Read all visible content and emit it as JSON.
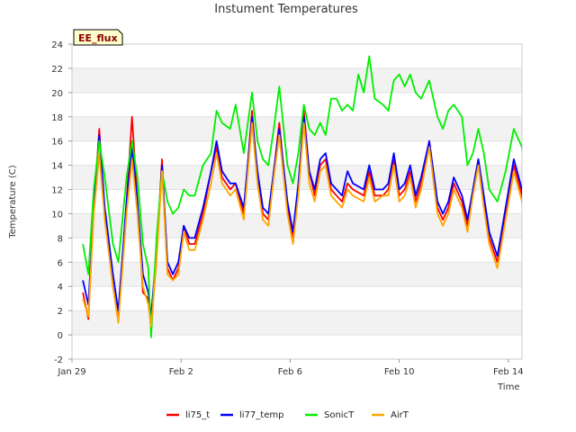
{
  "chart_data": {
    "type": "line",
    "title": "Instument Temperatures",
    "badge": "EE_flux",
    "xlabel": "Time",
    "ylabel": "Temperature (C)",
    "xlim": [
      0,
      16.5
    ],
    "ylim": [
      -2,
      24
    ],
    "yticks": [
      -2,
      0,
      2,
      4,
      6,
      8,
      10,
      12,
      14,
      16,
      18,
      20,
      22,
      24
    ],
    "xticks": [
      {
        "value": 0,
        "label": "Jan 29"
      },
      {
        "value": 4,
        "label": "Feb 2"
      },
      {
        "value": 8,
        "label": "Feb 6"
      },
      {
        "value": 12,
        "label": "Feb 10"
      },
      {
        "value": 16,
        "label": "Feb 14"
      }
    ],
    "grid": true,
    "legend_position": "bottom",
    "series": [
      {
        "name": "li75_t",
        "color": "#ff0000",
        "points": [
          [
            0.4,
            3.5
          ],
          [
            0.6,
            1.3
          ],
          [
            0.8,
            10.5
          ],
          [
            1.0,
            17.0
          ],
          [
            1.2,
            10.0
          ],
          [
            1.5,
            4.0
          ],
          [
            1.7,
            1.2
          ],
          [
            2.0,
            11.0
          ],
          [
            2.2,
            18.0
          ],
          [
            2.4,
            11.0
          ],
          [
            2.6,
            3.5
          ],
          [
            2.8,
            3.0
          ],
          [
            2.9,
            0.5
          ],
          [
            3.1,
            6.5
          ],
          [
            3.3,
            14.5
          ],
          [
            3.5,
            5.5
          ],
          [
            3.7,
            4.5
          ],
          [
            3.9,
            5.5
          ],
          [
            4.1,
            9.0
          ],
          [
            4.3,
            7.5
          ],
          [
            4.5,
            7.5
          ],
          [
            4.8,
            10.0
          ],
          [
            5.1,
            13.5
          ],
          [
            5.3,
            15.5
          ],
          [
            5.5,
            13.0
          ],
          [
            5.8,
            12.0
          ],
          [
            6.0,
            12.5
          ],
          [
            6.3,
            10.0
          ],
          [
            6.6,
            18.5
          ],
          [
            6.8,
            13.0
          ],
          [
            7.0,
            10.0
          ],
          [
            7.2,
            9.5
          ],
          [
            7.4,
            13.5
          ],
          [
            7.6,
            17.5
          ],
          [
            7.9,
            10.5
          ],
          [
            8.1,
            8.0
          ],
          [
            8.3,
            12.0
          ],
          [
            8.5,
            18.5
          ],
          [
            8.7,
            13.5
          ],
          [
            8.9,
            11.5
          ],
          [
            9.1,
            14.0
          ],
          [
            9.3,
            14.5
          ],
          [
            9.5,
            12.0
          ],
          [
            9.7,
            11.5
          ],
          [
            9.9,
            11.0
          ],
          [
            10.1,
            12.5
          ],
          [
            10.3,
            12.0
          ],
          [
            10.7,
            11.5
          ],
          [
            10.9,
            13.5
          ],
          [
            11.1,
            11.5
          ],
          [
            11.4,
            11.5
          ],
          [
            11.6,
            12.0
          ],
          [
            11.8,
            14.5
          ],
          [
            12.0,
            11.5
          ],
          [
            12.2,
            12.0
          ],
          [
            12.4,
            13.5
          ],
          [
            12.6,
            11.0
          ],
          [
            12.8,
            12.5
          ],
          [
            13.1,
            16.0
          ],
          [
            13.4,
            10.5
          ],
          [
            13.6,
            9.5
          ],
          [
            13.8,
            10.5
          ],
          [
            14.0,
            12.5
          ],
          [
            14.3,
            11.0
          ],
          [
            14.5,
            9.0
          ],
          [
            14.7,
            12.0
          ],
          [
            14.9,
            14.5
          ],
          [
            15.1,
            11.0
          ],
          [
            15.3,
            8.0
          ],
          [
            15.6,
            6.0
          ],
          [
            15.9,
            10.0
          ],
          [
            16.2,
            14.0
          ],
          [
            16.5,
            11.5
          ],
          [
            16.8,
            5.5
          ],
          [
            17.0,
            9.0
          ],
          [
            17.2,
            13.5
          ],
          [
            17.5,
            17.0
          ],
          [
            17.8,
            13.0
          ],
          [
            18.0,
            8.0
          ]
        ]
      },
      {
        "name": "li77_temp",
        "color": "#0000ff",
        "points": [
          [
            0.4,
            4.5
          ],
          [
            0.6,
            2.5
          ],
          [
            0.8,
            10.5
          ],
          [
            1.0,
            16.5
          ],
          [
            1.2,
            10.5
          ],
          [
            1.5,
            5.0
          ],
          [
            1.7,
            2.0
          ],
          [
            2.0,
            11.0
          ],
          [
            2.2,
            15.5
          ],
          [
            2.4,
            11.0
          ],
          [
            2.6,
            5.0
          ],
          [
            2.8,
            3.5
          ],
          [
            2.9,
            1.5
          ],
          [
            3.1,
            7.0
          ],
          [
            3.3,
            14.0
          ],
          [
            3.5,
            6.0
          ],
          [
            3.7,
            5.0
          ],
          [
            3.9,
            6.0
          ],
          [
            4.1,
            9.0
          ],
          [
            4.3,
            8.0
          ],
          [
            4.5,
            8.0
          ],
          [
            4.8,
            10.5
          ],
          [
            5.1,
            13.5
          ],
          [
            5.3,
            16.0
          ],
          [
            5.5,
            13.5
          ],
          [
            5.8,
            12.5
          ],
          [
            6.0,
            12.5
          ],
          [
            6.3,
            10.5
          ],
          [
            6.6,
            18.0
          ],
          [
            6.8,
            13.5
          ],
          [
            7.0,
            10.5
          ],
          [
            7.2,
            10.0
          ],
          [
            7.4,
            13.5
          ],
          [
            7.6,
            17.0
          ],
          [
            7.9,
            11.0
          ],
          [
            8.1,
            8.5
          ],
          [
            8.3,
            12.5
          ],
          [
            8.5,
            18.0
          ],
          [
            8.7,
            13.5
          ],
          [
            8.9,
            12.0
          ],
          [
            9.1,
            14.5
          ],
          [
            9.3,
            15.0
          ],
          [
            9.5,
            12.5
          ],
          [
            9.7,
            12.0
          ],
          [
            9.9,
            11.5
          ],
          [
            10.1,
            13.5
          ],
          [
            10.3,
            12.5
          ],
          [
            10.7,
            12.0
          ],
          [
            10.9,
            14.0
          ],
          [
            11.1,
            12.0
          ],
          [
            11.4,
            12.0
          ],
          [
            11.6,
            12.5
          ],
          [
            11.8,
            15.0
          ],
          [
            12.0,
            12.0
          ],
          [
            12.2,
            12.5
          ],
          [
            12.4,
            14.0
          ],
          [
            12.6,
            11.5
          ],
          [
            12.8,
            13.0
          ],
          [
            13.1,
            16.0
          ],
          [
            13.4,
            11.0
          ],
          [
            13.6,
            10.0
          ],
          [
            13.8,
            11.0
          ],
          [
            14.0,
            13.0
          ],
          [
            14.3,
            11.5
          ],
          [
            14.5,
            9.5
          ],
          [
            14.7,
            12.0
          ],
          [
            14.9,
            14.5
          ],
          [
            15.1,
            11.5
          ],
          [
            15.3,
            8.5
          ],
          [
            15.6,
            6.5
          ],
          [
            15.9,
            10.5
          ],
          [
            16.2,
            14.5
          ],
          [
            16.5,
            12.0
          ],
          [
            16.8,
            6.0
          ],
          [
            17.0,
            9.5
          ],
          [
            17.2,
            14.0
          ],
          [
            17.5,
            16.5
          ],
          [
            17.8,
            13.0
          ],
          [
            18.0,
            9.0
          ]
        ]
      },
      {
        "name": "SonicT",
        "color": "#00ee00",
        "points": [
          [
            0.4,
            7.5
          ],
          [
            0.6,
            5.0
          ],
          [
            0.8,
            12.0
          ],
          [
            1.0,
            16.0
          ],
          [
            1.2,
            13.0
          ],
          [
            1.5,
            7.5
          ],
          [
            1.7,
            6.0
          ],
          [
            2.0,
            13.0
          ],
          [
            2.2,
            16.0
          ],
          [
            2.4,
            13.0
          ],
          [
            2.6,
            7.5
          ],
          [
            2.8,
            5.5
          ],
          [
            2.9,
            -0.2
          ],
          [
            3.1,
            8.0
          ],
          [
            3.3,
            13.5
          ],
          [
            3.5,
            11.0
          ],
          [
            3.7,
            10.0
          ],
          [
            3.9,
            10.5
          ],
          [
            4.1,
            12.0
          ],
          [
            4.3,
            11.5
          ],
          [
            4.5,
            11.5
          ],
          [
            4.8,
            14.0
          ],
          [
            5.1,
            15.0
          ],
          [
            5.3,
            18.5
          ],
          [
            5.5,
            17.5
          ],
          [
            5.8,
            17.0
          ],
          [
            6.0,
            19.0
          ],
          [
            6.3,
            15.0
          ],
          [
            6.6,
            20.0
          ],
          [
            6.8,
            16.0
          ],
          [
            7.0,
            14.5
          ],
          [
            7.2,
            14.0
          ],
          [
            7.4,
            17.0
          ],
          [
            7.6,
            20.5
          ],
          [
            7.9,
            14.0
          ],
          [
            8.1,
            12.5
          ],
          [
            8.3,
            15.0
          ],
          [
            8.5,
            19.0
          ],
          [
            8.7,
            17.0
          ],
          [
            8.9,
            16.5
          ],
          [
            9.1,
            17.5
          ],
          [
            9.3,
            16.5
          ],
          [
            9.5,
            19.5
          ],
          [
            9.7,
            19.5
          ],
          [
            9.9,
            18.5
          ],
          [
            10.1,
            19.0
          ],
          [
            10.3,
            18.5
          ],
          [
            10.5,
            21.5
          ],
          [
            10.7,
            20.0
          ],
          [
            10.9,
            23.0
          ],
          [
            11.1,
            19.5
          ],
          [
            11.4,
            19.0
          ],
          [
            11.6,
            18.5
          ],
          [
            11.8,
            21.0
          ],
          [
            12.0,
            21.5
          ],
          [
            12.2,
            20.5
          ],
          [
            12.4,
            21.5
          ],
          [
            12.6,
            20.0
          ],
          [
            12.8,
            19.5
          ],
          [
            13.1,
            21.0
          ],
          [
            13.4,
            18.0
          ],
          [
            13.6,
            17.0
          ],
          [
            13.8,
            18.5
          ],
          [
            14.0,
            19.0
          ],
          [
            14.3,
            18.0
          ],
          [
            14.5,
            14.0
          ],
          [
            14.7,
            15.0
          ],
          [
            14.9,
            17.0
          ],
          [
            15.1,
            15.0
          ],
          [
            15.3,
            12.0
          ],
          [
            15.6,
            11.0
          ],
          [
            15.9,
            13.5
          ],
          [
            16.2,
            17.0
          ],
          [
            16.5,
            15.5
          ],
          [
            16.8,
            10.5
          ],
          [
            17.0,
            12.0
          ],
          [
            17.2,
            15.0
          ],
          [
            17.5,
            21.0
          ],
          [
            17.8,
            18.0
          ],
          [
            18.0,
            13.0
          ]
        ]
      },
      {
        "name": "AirT",
        "color": "#ffa500",
        "points": [
          [
            0.4,
            3.0
          ],
          [
            0.6,
            1.5
          ],
          [
            0.8,
            10.0
          ],
          [
            1.0,
            15.0
          ],
          [
            1.2,
            9.5
          ],
          [
            1.5,
            4.0
          ],
          [
            1.7,
            1.0
          ],
          [
            2.0,
            10.0
          ],
          [
            2.2,
            14.5
          ],
          [
            2.4,
            10.0
          ],
          [
            2.6,
            4.0
          ],
          [
            2.8,
            2.5
          ],
          [
            2.9,
            0.7
          ],
          [
            3.1,
            6.0
          ],
          [
            3.3,
            13.5
          ],
          [
            3.5,
            5.0
          ],
          [
            3.7,
            4.5
          ],
          [
            3.9,
            5.0
          ],
          [
            4.1,
            8.5
          ],
          [
            4.3,
            7.0
          ],
          [
            4.5,
            7.0
          ],
          [
            4.8,
            9.5
          ],
          [
            5.1,
            12.5
          ],
          [
            5.3,
            15.0
          ],
          [
            5.5,
            12.5
          ],
          [
            5.8,
            11.5
          ],
          [
            6.0,
            12.0
          ],
          [
            6.3,
            9.5
          ],
          [
            6.6,
            17.5
          ],
          [
            6.8,
            12.5
          ],
          [
            7.0,
            9.5
          ],
          [
            7.2,
            9.0
          ],
          [
            7.4,
            13.0
          ],
          [
            7.6,
            16.5
          ],
          [
            7.9,
            10.0
          ],
          [
            8.1,
            7.5
          ],
          [
            8.3,
            11.5
          ],
          [
            8.5,
            17.5
          ],
          [
            8.7,
            12.5
          ],
          [
            8.9,
            11.0
          ],
          [
            9.1,
            13.5
          ],
          [
            9.3,
            14.0
          ],
          [
            9.5,
            11.5
          ],
          [
            9.7,
            11.0
          ],
          [
            9.9,
            10.5
          ],
          [
            10.1,
            12.0
          ],
          [
            10.3,
            11.5
          ],
          [
            10.7,
            11.0
          ],
          [
            10.9,
            13.0
          ],
          [
            11.1,
            11.0
          ],
          [
            11.4,
            11.5
          ],
          [
            11.6,
            11.5
          ],
          [
            11.8,
            14.0
          ],
          [
            12.0,
            11.0
          ],
          [
            12.2,
            11.5
          ],
          [
            12.4,
            13.0
          ],
          [
            12.6,
            10.5
          ],
          [
            12.8,
            12.0
          ],
          [
            13.1,
            15.5
          ],
          [
            13.4,
            10.0
          ],
          [
            13.6,
            9.0
          ],
          [
            13.8,
            10.0
          ],
          [
            14.0,
            12.0
          ],
          [
            14.3,
            10.5
          ],
          [
            14.5,
            8.5
          ],
          [
            14.7,
            11.5
          ],
          [
            14.9,
            14.0
          ],
          [
            15.1,
            10.5
          ],
          [
            15.3,
            7.5
          ],
          [
            15.6,
            5.5
          ],
          [
            15.9,
            9.5
          ],
          [
            16.2,
            13.5
          ],
          [
            16.5,
            11.0
          ],
          [
            16.8,
            5.0
          ],
          [
            17.0,
            8.5
          ],
          [
            17.2,
            13.0
          ],
          [
            17.5,
            16.0
          ],
          [
            17.8,
            12.5
          ],
          [
            18.0,
            8.5
          ]
        ]
      }
    ]
  }
}
